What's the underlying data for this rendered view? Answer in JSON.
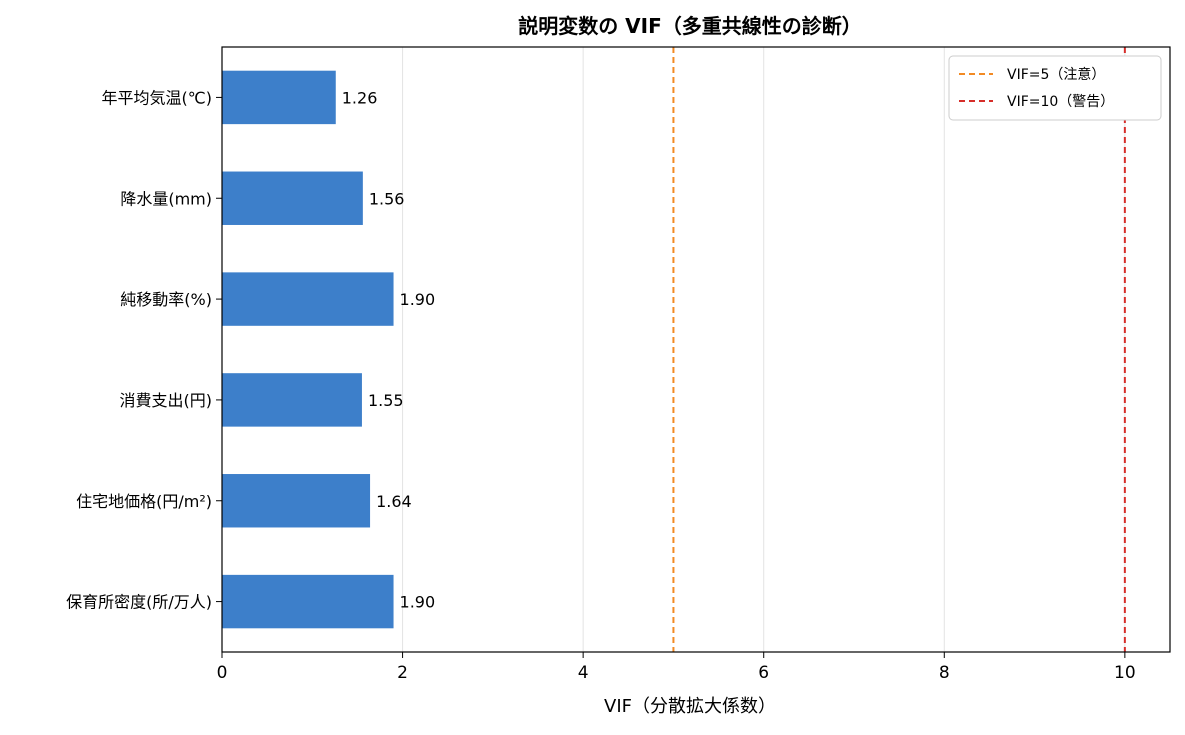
{
  "chart_data": {
    "type": "bar",
    "orientation": "horizontal",
    "title": "説明変数の VIF（多重共線性の診断）",
    "xlabel": "VIF（分散拡大係数）",
    "ylabel": "",
    "xlim": [
      0,
      10.5
    ],
    "xticks": [
      0,
      2,
      4,
      6,
      8,
      10
    ],
    "grid": "vertical",
    "categories": [
      "年平均気温(℃)",
      "降水量(mm)",
      "純移動率(%)",
      "消費支出(円)",
      "住宅地価格(円/m²)",
      "保育所密度(所/万人)"
    ],
    "values": [
      1.26,
      1.56,
      1.9,
      1.55,
      1.64,
      1.9
    ],
    "value_labels": [
      "1.26",
      "1.56",
      "1.90",
      "1.55",
      "1.64",
      "1.90"
    ],
    "bar_color": "#3d7fca",
    "reference_lines": [
      {
        "value": 5,
        "label": "VIF=5（注意）",
        "color": "#f28a24",
        "style": "dashed"
      },
      {
        "value": 10,
        "label": "VIF=10（警告）",
        "color": "#d62e2a",
        "style": "dashed"
      }
    ],
    "legend_position": "top-right"
  }
}
